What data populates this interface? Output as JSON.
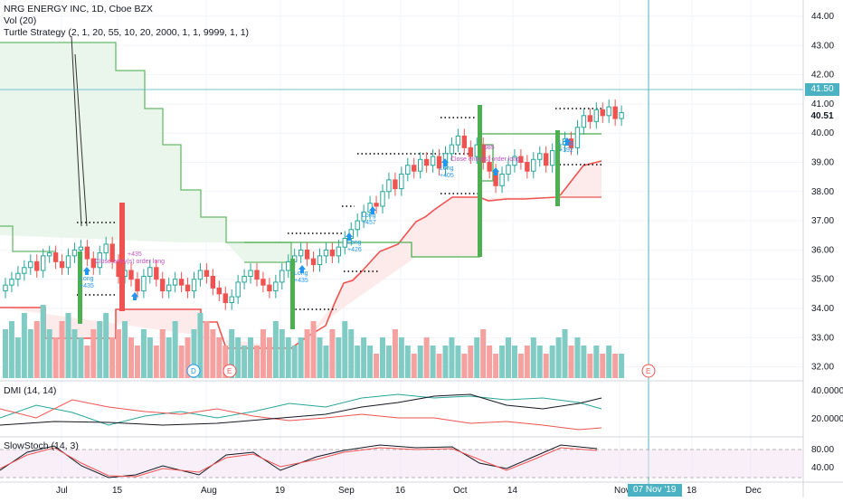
{
  "header": {
    "symbol_line": "NRG ENERGY INC, 1D, Cboe BZX",
    "vol_line": "Vol (20)",
    "strategy_line": "Turtle Strategy (2, 1, 20, 55, 10, 20, 2000, 1, 1, 9999, 1, 1)"
  },
  "price_axis": {
    "ticks": [
      "44.00",
      "43.00",
      "42.00",
      "41.00",
      "40.00",
      "39.00",
      "38.00",
      "37.00",
      "36.00",
      "35.00",
      "34.00",
      "33.00",
      "32.00"
    ],
    "crosshair_value": "41.50",
    "last_price": "40.51"
  },
  "time_axis": {
    "ticks": [
      "Jul",
      "15",
      "Aug",
      "19",
      "Sep",
      "16",
      "Oct",
      "14",
      "Nov",
      "18",
      "Dec"
    ],
    "crosshair_date": "07 Nov '19"
  },
  "events": [
    {
      "label": "D",
      "kind": "dividend"
    },
    {
      "label": "E",
      "kind": "earnings"
    },
    {
      "label": "E",
      "kind": "earnings-upcoming"
    }
  ],
  "trade_labels": [
    {
      "text": "Long\n+435"
    },
    {
      "text": "Close entry(s) order long"
    },
    {
      "text": "+435"
    },
    {
      "text": "Long\n+435"
    },
    {
      "text": "Long\n+426"
    },
    {
      "text": "Long\n+457"
    },
    {
      "text": "Long\n+405"
    },
    {
      "text": "Close entry(s) order long"
    },
    {
      "text": "685"
    },
    {
      "text": "Long\n+392"
    }
  ],
  "dmi": {
    "title": "DMI (14, 14)",
    "ticks": [
      "40.0000",
      "20.0000"
    ]
  },
  "stoch": {
    "title": "SlowStoch (14, 3)",
    "ticks": [
      "80.00",
      "40.00"
    ]
  },
  "colors": {
    "up": "#26a69a",
    "down": "#ef5350",
    "crosshair": "#4bb2c4",
    "channel_green": "#4caf50",
    "channel_red": "#ef5350"
  }
}
